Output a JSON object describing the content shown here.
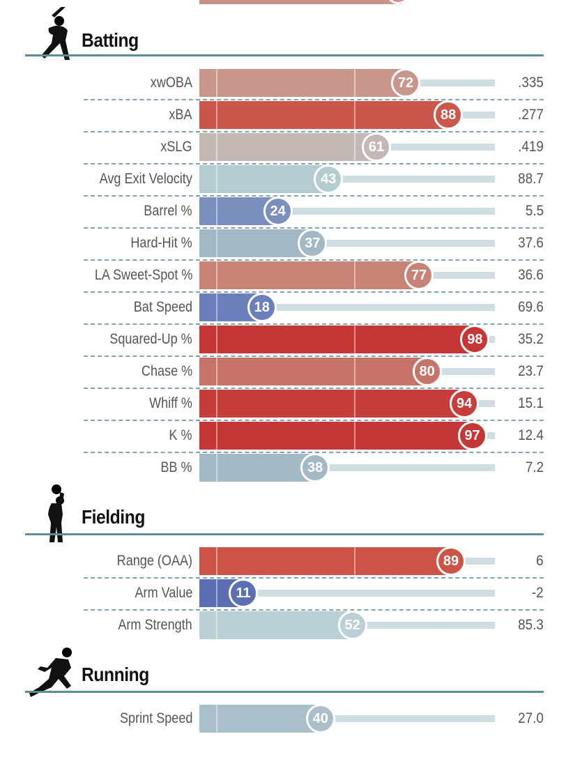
{
  "colors": {
    "accent_rule": "#5c8e96",
    "track": "#cfdfe1",
    "top_stub": "#cc9187"
  },
  "sections": [
    {
      "title": "Batting",
      "icon": "batter-icon",
      "rows": [
        {
          "label": "xwOBA",
          "percentile": 72,
          "value": ".335",
          "color": "#c9968b"
        },
        {
          "label": "xBA",
          "percentile": 88,
          "value": ".277",
          "color": "#cb574c"
        },
        {
          "label": "xSLG",
          "percentile": 61,
          "value": ".419",
          "color": "#c4b8b5"
        },
        {
          "label": "Avg Exit Velocity",
          "percentile": 43,
          "value": "88.7",
          "color": "#b4cbd0"
        },
        {
          "label": "Barrel %",
          "percentile": 24,
          "value": "5.5",
          "color": "#7b8fbf"
        },
        {
          "label": "Hard-Hit %",
          "percentile": 37,
          "value": "37.6",
          "color": "#a3b8c5"
        },
        {
          "label": "LA Sweet-Spot %",
          "percentile": 77,
          "value": "36.6",
          "color": "#c88376"
        },
        {
          "label": "Bat Speed",
          "percentile": 18,
          "value": "69.6",
          "color": "#6a7fbb"
        },
        {
          "label": "Squared-Up %",
          "percentile": 98,
          "value": "35.2",
          "color": "#c53636"
        },
        {
          "label": "Chase %",
          "percentile": 80,
          "value": "23.7",
          "color": "#c77369"
        },
        {
          "label": "Whiff %",
          "percentile": 94,
          "value": "15.1",
          "color": "#c73d3b"
        },
        {
          "label": "K %",
          "percentile": 97,
          "value": "12.4",
          "color": "#c53736"
        },
        {
          "label": "BB %",
          "percentile": 38,
          "value": "7.2",
          "color": "#a3b9c6"
        }
      ]
    },
    {
      "title": "Fielding",
      "icon": "fielder-icon",
      "rows": [
        {
          "label": "Range (OAA)",
          "percentile": 89,
          "value": "6",
          "color": "#cb5447"
        },
        {
          "label": "Arm Value",
          "percentile": 11,
          "value": "-2",
          "color": "#5a70b2"
        },
        {
          "label": "Arm Strength",
          "percentile": 52,
          "value": "85.3",
          "color": "#bad0d4"
        }
      ]
    },
    {
      "title": "Running",
      "icon": "runner-icon",
      "rows": [
        {
          "label": "Sprint Speed",
          "percentile": 40,
          "value": "27.0",
          "color": "#aabfca"
        }
      ]
    }
  ],
  "chart_data": {
    "type": "bar",
    "xlim": [
      0,
      100
    ],
    "categories": [
      "xwOBA",
      "xBA",
      "xSLG",
      "Avg Exit Velocity",
      "Barrel %",
      "Hard-Hit %",
      "LA Sweet-Spot %",
      "Bat Speed",
      "Squared-Up %",
      "Chase %",
      "Whiff %",
      "K %",
      "BB %",
      "Range (OAA)",
      "Arm Value",
      "Arm Strength",
      "Sprint Speed"
    ],
    "values": [
      72,
      88,
      61,
      43,
      24,
      37,
      77,
      18,
      98,
      80,
      94,
      97,
      38,
      89,
      11,
      52,
      40
    ],
    "stat_values": [
      ".335",
      ".277",
      ".419",
      "88.7",
      "5.5",
      "37.6",
      "36.6",
      "69.6",
      "35.2",
      "23.7",
      "15.1",
      "12.4",
      "7.2",
      "6",
      "-2",
      "85.3",
      "27.0"
    ]
  }
}
